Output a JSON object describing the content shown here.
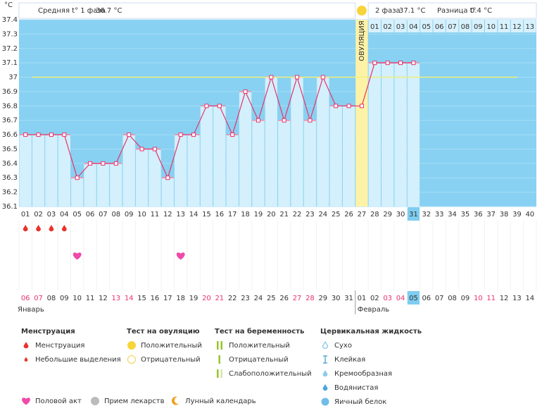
{
  "chart_data": {
    "type": "line",
    "unit": "°C",
    "phase1_label": "Средняя t° 1 фаза",
    "phase1_avg": "36.7 °C",
    "phase2_label": "2 фаза",
    "phase2_avg": "37.1 °C",
    "diff_label": "Разница t°",
    "diff_value": "0.4 °C",
    "ovulation_label": "ОВУЛЯЦИЯ",
    "ovulation_day": "27",
    "categories": [
      "01",
      "02",
      "03",
      "04",
      "05",
      "06",
      "07",
      "08",
      "09",
      "10",
      "11",
      "12",
      "13",
      "14",
      "15",
      "16",
      "17",
      "18",
      "19",
      "20",
      "21",
      "22",
      "23",
      "24",
      "25",
      "26",
      "27",
      "28",
      "29",
      "30",
      "31",
      "32",
      "33",
      "34",
      "35",
      "36",
      "37",
      "38",
      "39",
      "40"
    ],
    "values": [
      36.6,
      36.6,
      36.6,
      36.6,
      36.3,
      36.4,
      36.4,
      36.4,
      36.6,
      36.5,
      36.5,
      36.3,
      36.6,
      36.6,
      36.8,
      36.8,
      36.6,
      36.9,
      36.7,
      37.0,
      36.7,
      37.0,
      36.7,
      37.0,
      36.8,
      36.8,
      36.8,
      37.1,
      37.1,
      37.1,
      37.1,
      null,
      null,
      null,
      null,
      null,
      null,
      null,
      null,
      null
    ],
    "color": "#e8336b",
    "coverline": 37,
    "ylim": [
      36.1,
      37.4
    ],
    "yticks": [
      36.1,
      36.2,
      36.3,
      36.4,
      36.5,
      36.6,
      36.7,
      36.8,
      36.9,
      37,
      37.1,
      37.2,
      37.3,
      37.4
    ],
    "phase2_days": [
      "01",
      "02",
      "03",
      "04",
      "05",
      "06",
      "07",
      "08",
      "09",
      "10",
      "11",
      "12",
      "13"
    ],
    "today": "31",
    "menstruation_days": [
      "01",
      "02",
      "03",
      "04"
    ],
    "intercourse_days": [
      "05",
      "13"
    ],
    "dates": [
      "06",
      "07",
      "08",
      "09",
      "10",
      "11",
      "12",
      "13",
      "14",
      "15",
      "16",
      "17",
      "18",
      "19",
      "20",
      "21",
      "22",
      "23",
      "24",
      "25",
      "26",
      "27",
      "28",
      "29",
      "30",
      "31",
      "01",
      "02",
      "03",
      "04",
      "05",
      "06",
      "07",
      "08",
      "09",
      "10",
      "11",
      "12",
      "13",
      "14"
    ],
    "date_colors": [
      "#e8336b",
      "#e8336b",
      "#333",
      "#333",
      "#333",
      "#333",
      "#333",
      "#e8336b",
      "#e8336b",
      "#333",
      "#333",
      "#333",
      "#333",
      "#333",
      "#e8336b",
      "#e8336b",
      "#333",
      "#333",
      "#333",
      "#333",
      "#333",
      "#e8336b",
      "#e8336b",
      "#333",
      "#333",
      "#333",
      "#333",
      "#333",
      "#e8336b",
      "#e8336b",
      "#333",
      "#333",
      "#333",
      "#333",
      "#333",
      "#e8336b",
      "#e8336b",
      "#333",
      "#333",
      "#333"
    ],
    "months": [
      "Январь",
      "Февраль"
    ]
  },
  "legend": {
    "groups": [
      {
        "title": "Менструация",
        "items": [
          "Менструация",
          "Небольшие выделения"
        ]
      },
      {
        "title": "Тест на овуляцию",
        "items": [
          "Положительный",
          "Отрицательный"
        ]
      },
      {
        "title": "Тест на беременность",
        "items": [
          "Положительный",
          "Отрицательный",
          "Слабоположительный"
        ]
      },
      {
        "title": "Цервикальная жидкость",
        "items": [
          "Сухо",
          "Клейкая",
          "Кремообразная",
          "Водянистая",
          "Яичный белок"
        ]
      }
    ],
    "extras": [
      "Половой акт",
      "Прием лекарств",
      "Лунный календарь"
    ]
  }
}
